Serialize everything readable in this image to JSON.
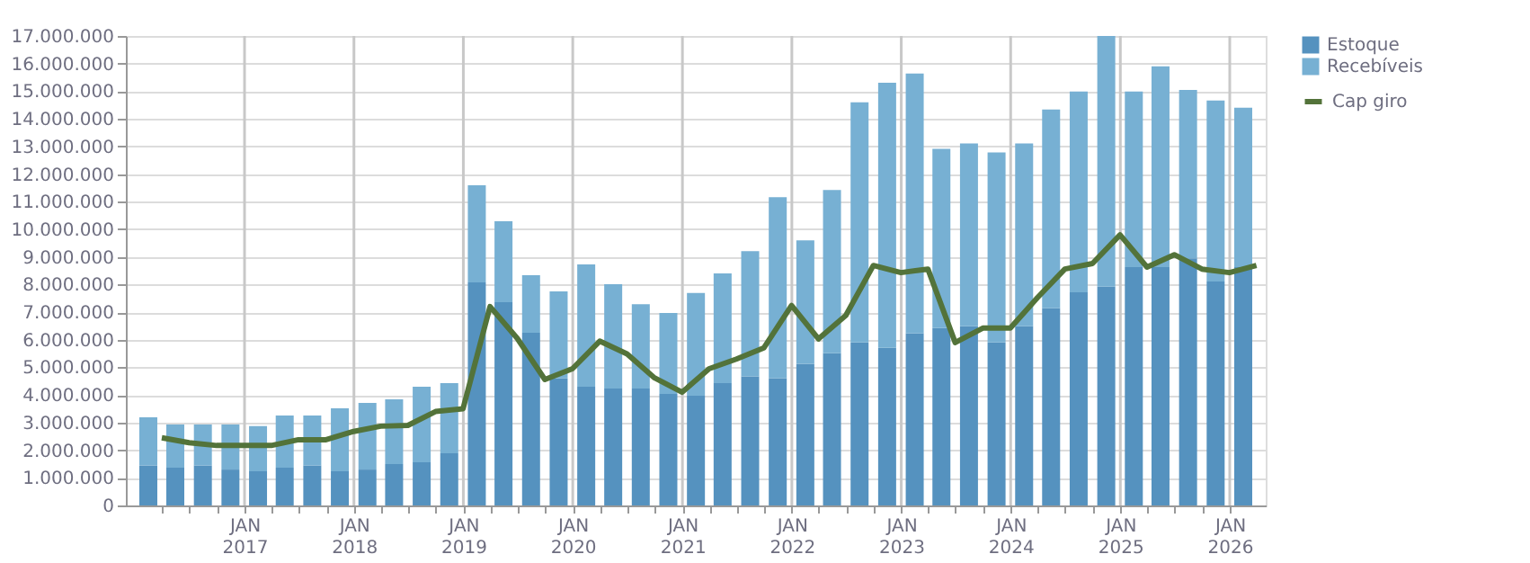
{
  "chart_data": {
    "type": "bar",
    "stacked": true,
    "x": [
      "2016-02-15",
      "2016-05-15",
      "2016-08-15",
      "2016-11-15",
      "2017-02-15",
      "2017-05-15",
      "2017-08-15",
      "2017-11-15",
      "2018-02-15",
      "2018-05-15",
      "2018-08-15",
      "2018-11-15",
      "2019-02-15",
      "2019-05-15",
      "2019-08-15",
      "2019-11-15",
      "2020-02-15",
      "2020-05-15",
      "2020-08-15",
      "2020-11-15",
      "2021-02-15",
      "2021-05-15",
      "2021-08-15",
      "2021-11-15",
      "2022-02-15",
      "2022-05-15",
      "2022-08-15",
      "2022-11-15",
      "2023-02-15",
      "2023-05-15",
      "2023-08-15",
      "2023-11-15",
      "2024-02-15",
      "2024-05-15",
      "2024-08-15",
      "2024-11-15",
      "2025-02-15",
      "2025-05-15",
      "2025-08-15",
      "2025-11-15",
      "2026-02-15"
    ],
    "series": [
      {
        "name": "Estoque",
        "color": "#5592bf",
        "values": [
          1450000,
          1370000,
          1450000,
          1300000,
          1240000,
          1370000,
          1450000,
          1240000,
          1300000,
          1500000,
          1560000,
          1890000,
          8080000,
          7360000,
          6250000,
          4600000,
          4300000,
          4230000,
          4230000,
          4040000,
          3970000,
          4430000,
          4670000,
          4610000,
          5130000,
          5510000,
          5900000,
          5710000,
          6230000,
          6420000,
          6490000,
          5900000,
          6490000,
          7140000,
          7720000,
          7920000,
          8630000,
          8630000,
          8950000,
          8110000,
          8630000
        ]
      },
      {
        "name": "Recebíveis",
        "color": "#77b0d3",
        "values": [
          1740000,
          1560000,
          1480000,
          1630000,
          1630000,
          1890000,
          1810000,
          2280000,
          2410000,
          2340000,
          2740000,
          2540000,
          3510000,
          2930000,
          2090000,
          3150000,
          4430000,
          3780000,
          3060000,
          2930000,
          3720000,
          3970000,
          4540000,
          6550000,
          4470000,
          5910000,
          8700000,
          9600000,
          9410000,
          6490000,
          6620000,
          6880000,
          6620000,
          7200000,
          7270000,
          9080000,
          6360000,
          7270000,
          6100000,
          6550000,
          5770000
        ]
      },
      {
        "name": "Cap giro",
        "type": "line",
        "color": "#53733a",
        "x": [
          "2016-03-31",
          "2016-06-30",
          "2016-09-30",
          "2016-12-31",
          "2017-03-31",
          "2017-06-30",
          "2017-09-30",
          "2017-12-31",
          "2018-03-31",
          "2018-06-30",
          "2018-09-30",
          "2018-12-31",
          "2019-03-31",
          "2019-06-30",
          "2019-09-30",
          "2019-12-31",
          "2020-03-31",
          "2020-06-30",
          "2020-09-30",
          "2020-12-31",
          "2021-03-31",
          "2021-06-30",
          "2021-09-30",
          "2021-12-31",
          "2022-03-31",
          "2022-06-30",
          "2022-09-30",
          "2022-12-31",
          "2023-03-31",
          "2023-06-30",
          "2023-09-30",
          "2023-12-31",
          "2024-03-31",
          "2024-06-30",
          "2024-09-30",
          "2024-12-31",
          "2025-03-31",
          "2025-06-30",
          "2025-09-30",
          "2025-12-31",
          "2026-03-31"
        ],
        "values": [
          2450000,
          2270000,
          2170000,
          2170000,
          2170000,
          2380000,
          2380000,
          2680000,
          2870000,
          2900000,
          3400000,
          3500000,
          7200000,
          6050000,
          4560000,
          4950000,
          5950000,
          5490000,
          4620000,
          4100000,
          4950000,
          5300000,
          5710000,
          7240000,
          6030000,
          6880000,
          8690000,
          8430000,
          8560000,
          5900000,
          6420000,
          6420000,
          7530000,
          8560000,
          8760000,
          9800000,
          8630000,
          9080000,
          8560000,
          8430000,
          8690000
        ]
      }
    ],
    "xlim": [
      "2016-01-01",
      "2026-04-01"
    ],
    "xticks": [
      {
        "value": "2016-04-01",
        "label": null
      },
      {
        "value": "2016-07-01",
        "label": null
      },
      {
        "value": "2016-10-01",
        "label": null
      },
      {
        "value": "2017-01-01",
        "label": "JAN\n2017"
      },
      {
        "value": "2017-04-01",
        "label": null
      },
      {
        "value": "2017-07-01",
        "label": null
      },
      {
        "value": "2017-10-01",
        "label": null
      },
      {
        "value": "2018-01-01",
        "label": "JAN\n2018"
      },
      {
        "value": "2018-04-01",
        "label": null
      },
      {
        "value": "2018-07-01",
        "label": null
      },
      {
        "value": "2018-10-01",
        "label": null
      },
      {
        "value": "2019-01-01",
        "label": "JAN\n2019"
      },
      {
        "value": "2019-04-01",
        "label": null
      },
      {
        "value": "2019-07-01",
        "label": null
      },
      {
        "value": "2019-10-01",
        "label": null
      },
      {
        "value": "2020-01-01",
        "label": "JAN\n2020"
      },
      {
        "value": "2020-04-01",
        "label": null
      },
      {
        "value": "2020-07-01",
        "label": null
      },
      {
        "value": "2020-10-01",
        "label": null
      },
      {
        "value": "2021-01-01",
        "label": "JAN\n2021"
      },
      {
        "value": "2021-04-01",
        "label": null
      },
      {
        "value": "2021-07-01",
        "label": null
      },
      {
        "value": "2021-10-01",
        "label": null
      },
      {
        "value": "2022-01-01",
        "label": "JAN\n2022"
      },
      {
        "value": "2022-04-01",
        "label": null
      },
      {
        "value": "2022-07-01",
        "label": null
      },
      {
        "value": "2022-10-01",
        "label": null
      },
      {
        "value": "2023-01-01",
        "label": "JAN\n2023"
      },
      {
        "value": "2023-04-01",
        "label": null
      },
      {
        "value": "2023-07-01",
        "label": null
      },
      {
        "value": "2023-10-01",
        "label": null
      },
      {
        "value": "2024-01-01",
        "label": "JAN\n2024"
      },
      {
        "value": "2024-04-01",
        "label": null
      },
      {
        "value": "2024-07-01",
        "label": null
      },
      {
        "value": "2024-10-01",
        "label": null
      },
      {
        "value": "2025-01-01",
        "label": "JAN\n2025"
      },
      {
        "value": "2025-04-01",
        "label": null
      },
      {
        "value": "2025-07-01",
        "label": null
      },
      {
        "value": "2025-10-01",
        "label": null
      },
      {
        "value": "2026-01-01",
        "label": "JAN\n2026"
      }
    ],
    "ylim": [
      0,
      17000000
    ],
    "yticks": [
      0,
      {
        "value": 1000000,
        "label": "1.000.000"
      },
      {
        "value": 2000000,
        "label": "2.000.000"
      },
      {
        "value": 3000000,
        "label": "3.000.000"
      },
      {
        "value": 4000000,
        "label": "4.000.000"
      },
      {
        "value": 5000000,
        "label": "5.000.000"
      },
      {
        "value": 6000000,
        "label": "6.000.000"
      },
      {
        "value": 7000000,
        "label": "7.000.000"
      },
      {
        "value": 8000000,
        "label": "8.000.000"
      },
      {
        "value": 9000000,
        "label": "9.000.000"
      },
      {
        "value": 10000000,
        "label": "10.000.000"
      },
      {
        "value": 11000000,
        "label": "11.000.000"
      },
      {
        "value": 12000000,
        "label": "12.000.000"
      },
      {
        "value": 13000000,
        "label": "13.000.000"
      },
      {
        "value": 14000000,
        "label": "14.000.000"
      },
      {
        "value": 15000000,
        "label": "15.000.000"
      },
      {
        "value": 16000000,
        "label": "16.000.000"
      },
      {
        "value": 17000000,
        "label": "17.000.000"
      }
    ],
    "grid": true,
    "legend": "top right"
  }
}
